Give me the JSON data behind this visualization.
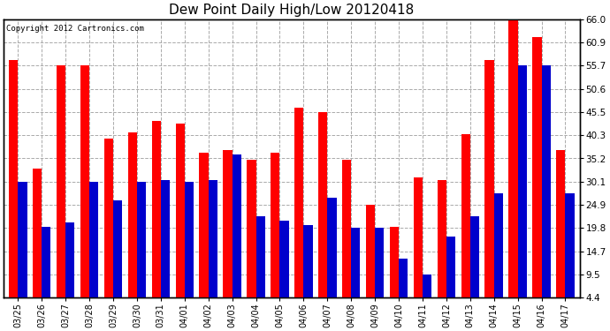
{
  "title": "Dew Point Daily High/Low 20120418",
  "copyright": "Copyright 2012 Cartronics.com",
  "categories": [
    "03/25",
    "03/26",
    "03/27",
    "03/28",
    "03/29",
    "03/30",
    "03/31",
    "04/01",
    "04/02",
    "04/03",
    "04/04",
    "04/05",
    "04/06",
    "04/07",
    "04/08",
    "04/09",
    "04/10",
    "04/11",
    "04/12",
    "04/13",
    "04/14",
    "04/15",
    "04/16",
    "04/17"
  ],
  "high_values": [
    57.0,
    33.0,
    55.7,
    55.7,
    39.5,
    41.0,
    43.5,
    43.0,
    36.5,
    37.0,
    35.0,
    36.5,
    46.5,
    45.5,
    35.0,
    25.0,
    20.0,
    31.0,
    30.5,
    40.5,
    57.0,
    66.0,
    62.0,
    37.0
  ],
  "low_values": [
    30.1,
    20.0,
    21.0,
    30.1,
    26.0,
    30.1,
    30.5,
    30.1,
    30.5,
    36.0,
    22.5,
    21.5,
    20.5,
    26.5,
    19.8,
    19.8,
    13.0,
    9.5,
    18.0,
    22.5,
    27.5,
    55.7,
    55.7,
    27.5
  ],
  "high_color": "#ff0000",
  "low_color": "#0000cc",
  "background_color": "#ffffff",
  "plot_bg_color": "#ffffff",
  "yticks": [
    4.4,
    9.5,
    14.7,
    19.8,
    24.9,
    30.1,
    35.2,
    40.3,
    45.5,
    50.6,
    55.7,
    60.9,
    66.0
  ],
  "ylim_min": 4.4,
  "ylim_max": 66.0,
  "grid_color": "#aaaaaa",
  "bar_width": 0.38,
  "title_fontsize": 11,
  "tick_fontsize": 7.5,
  "xlabel_fontsize": 7,
  "copyright_fontsize": 6.5
}
